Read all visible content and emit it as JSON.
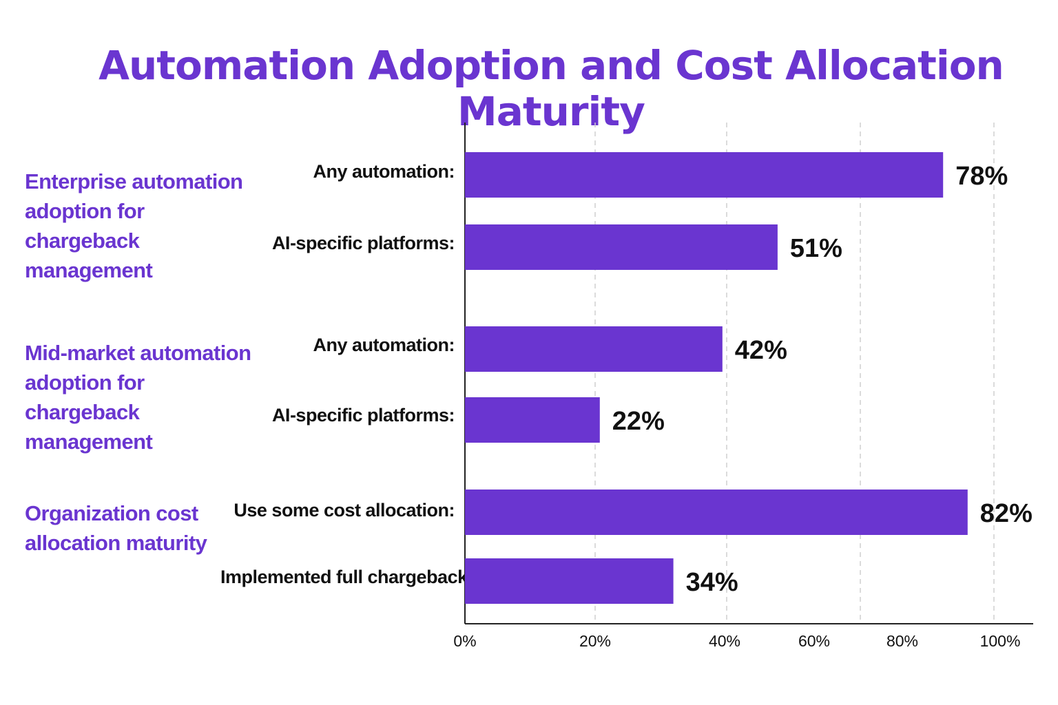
{
  "title": "Automation Adoption and Cost Allocation Maturity",
  "colors": {
    "accent": "#6a35d0",
    "bar": "#6a35d0",
    "text": "#111111"
  },
  "groups": [
    "Enterprise automation adoption for chargeback management",
    "Mid-market automation adoption for chargeback management",
    "Organization cost allocation maturity"
  ],
  "chart_data": {
    "type": "bar",
    "orientation": "horizontal",
    "title": "Automation Adoption and Cost Allocation Maturity",
    "xlabel": "",
    "ylabel": "",
    "xlim": [
      0,
      100
    ],
    "grid": true,
    "x_ticks": [
      "0%",
      "20%",
      "40%",
      "60%",
      "80%",
      "100%"
    ],
    "bars": [
      {
        "group": 0,
        "label": "Any automation:",
        "value": 78,
        "value_label": "78%"
      },
      {
        "group": 0,
        "label": "AI-specific platforms:",
        "value": 51,
        "value_label": "51%"
      },
      {
        "group": 1,
        "label": "Any automation:",
        "value": 42,
        "value_label": "42%"
      },
      {
        "group": 1,
        "label": "AI-specific platforms:",
        "value": 22,
        "value_label": "22%"
      },
      {
        "group": 2,
        "label": "Use some cost allocation:",
        "value": 82,
        "value_label": "82%"
      },
      {
        "group": 2,
        "label": "Implemented full chargeback:",
        "value": 34,
        "value_label": "34%"
      }
    ]
  }
}
